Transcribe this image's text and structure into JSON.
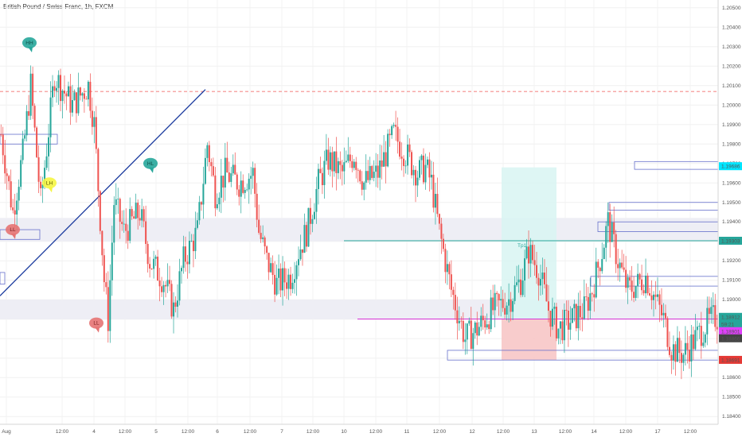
{
  "symbol_title": "British Pound / Swiss Franc, 1h, FXCM",
  "colors": {
    "up": "#26a69a",
    "down": "#ef5350",
    "trendline": "#1a3a9e",
    "resistance_dash": "#ef5350",
    "tp_line": "#26a69a",
    "magenta_line": "#d633d6",
    "zone_box": "#6670cc",
    "take_profit_fill": "#d8f5f2",
    "stop_loss_fill": "#f7c7c7",
    "band_fill": "#eeeef5"
  },
  "tp_label": "Tp1",
  "chart_data": {
    "type": "candlestick",
    "title": "British Pound / Swiss Franc, 1h, FXCM",
    "ylim": [
      1.1836,
      1.2054
    ],
    "y_ticks": [
      "1.20500",
      "1.20400",
      "1.20300",
      "1.20200",
      "1.20100",
      "1.20000",
      "1.19900",
      "1.19800",
      "1.19700",
      "1.19600",
      "1.19500",
      "1.19400",
      "1.19300",
      "1.19200",
      "1.19100",
      "1.19000",
      "1.18900",
      "1.18800",
      "1.18700",
      "1.18600",
      "1.18500",
      "1.18400"
    ],
    "x_ticks": [
      "Aug",
      "12:00",
      "4",
      "12:00",
      "5",
      "12:00",
      "6",
      "12:00",
      "7",
      "12:00",
      "10",
      "12:00",
      "11",
      "12:00",
      "12",
      "12:00",
      "13",
      "12:00",
      "14",
      "12:00",
      "17",
      "12:00"
    ],
    "price_tags": [
      {
        "label": "1.19686",
        "value": 1.19686,
        "bg": "#00e5ff",
        "fg": "#000000"
      },
      {
        "label": "1.19303",
        "value": 1.19303,
        "bg": "#26a69a",
        "fg": "#ffffff"
      },
      {
        "label": "1.18912",
        "value": 1.18912,
        "bg": "#26a69a",
        "fg": "#ffffff"
      },
      {
        "label": "59:21",
        "value": 1.18871,
        "bg": "#26a69a",
        "fg": "#ffffff"
      },
      {
        "label": "1.18901",
        "value": 1.18901,
        "bg": "#e040fb",
        "fg": "#ffffff"
      },
      {
        "label": "1.18866",
        "value": 1.18866,
        "bg": "#444444",
        "fg": "#ffffff"
      },
      {
        "label": "1.18691",
        "value": 1.18691,
        "bg": "#e53935",
        "fg": "#ffffff"
      }
    ],
    "horizontal_levels": [
      {
        "name": "resistance",
        "value": 1.2007,
        "style": "dashed"
      },
      {
        "name": "tp1",
        "value": 1.19303,
        "style": "solid"
      },
      {
        "name": "entry",
        "value": 1.18901,
        "style": "solid"
      }
    ],
    "anchors": [
      [
        0,
        1.1985
      ],
      [
        6,
        1.1945
      ],
      [
        11,
        1.1975
      ],
      [
        15,
        1.201
      ],
      [
        20,
        1.195
      ],
      [
        27,
        1.2015
      ],
      [
        36,
        1.2
      ],
      [
        44,
        1.201
      ],
      [
        47,
        1.199
      ],
      [
        52,
        1.191
      ],
      [
        54,
        1.189
      ],
      [
        57,
        1.195
      ],
      [
        62,
        1.1935
      ],
      [
        70,
        1.1945
      ],
      [
        75,
        1.192
      ],
      [
        82,
        1.191
      ],
      [
        87,
        1.1895
      ],
      [
        92,
        1.192
      ],
      [
        99,
        1.1935
      ],
      [
        104,
        1.198
      ],
      [
        108,
        1.1955
      ],
      [
        113,
        1.1965
      ],
      [
        120,
        1.196
      ],
      [
        127,
        1.1965
      ],
      [
        130,
        1.1935
      ],
      [
        134,
        1.192
      ],
      [
        139,
        1.1908
      ],
      [
        146,
        1.1912
      ],
      [
        150,
        1.1925
      ],
      [
        154,
        1.1935
      ],
      [
        160,
        1.196
      ],
      [
        165,
        1.1972
      ],
      [
        172,
        1.1965
      ],
      [
        178,
        1.1975
      ],
      [
        183,
        1.196
      ],
      [
        190,
        1.1965
      ],
      [
        198,
        1.1985
      ],
      [
        204,
        1.1975
      ],
      [
        210,
        1.1965
      ],
      [
        214,
        1.1968
      ],
      [
        217,
        1.196
      ],
      [
        221,
        1.1935
      ],
      [
        227,
        1.1905
      ],
      [
        234,
        1.188
      ],
      [
        240,
        1.1885
      ],
      [
        248,
        1.1895
      ],
      [
        256,
        1.19
      ],
      [
        262,
        1.191
      ],
      [
        266,
        1.1925
      ],
      [
        271,
        1.1915
      ],
      [
        276,
        1.1895
      ],
      [
        281,
        1.1885
      ],
      [
        288,
        1.189
      ],
      [
        294,
        1.1895
      ],
      [
        298,
        1.1905
      ],
      [
        303,
        1.1925
      ],
      [
        306,
        1.194
      ],
      [
        311,
        1.192
      ],
      [
        316,
        1.1905
      ],
      [
        321,
        1.1908
      ],
      [
        325,
        1.1912
      ],
      [
        330,
        1.19
      ],
      [
        334,
        1.189
      ],
      [
        338,
        1.1875
      ],
      [
        344,
        1.1872
      ],
      [
        350,
        1.188
      ],
      [
        356,
        1.1888
      ],
      [
        360,
        1.1891
      ]
    ]
  },
  "markers": [
    {
      "shape": "bubble",
      "label": "HH",
      "bg": "#26a69a",
      "fg": "#0d4d47",
      "x_index": 10,
      "price": 1.2032
    },
    {
      "shape": "bubble",
      "label": "LH",
      "bg": "#f5f542",
      "fg": "#555500",
      "x_index": 25,
      "price": 1.196
    },
    {
      "shape": "bubble",
      "label": "LL",
      "bg": "#e57373",
      "fg": "#7a1d1d",
      "x_index": 3,
      "price": 1.1936
    },
    {
      "shape": "bubble",
      "label": "HL",
      "bg": "#26a69a",
      "fg": "#0d4d47",
      "x_index": 76,
      "price": 1.197
    },
    {
      "shape": "bubble",
      "label": "LL",
      "bg": "#e57373",
      "fg": "#7a1d1d",
      "x_index": 48,
      "price": 1.1888
    }
  ]
}
